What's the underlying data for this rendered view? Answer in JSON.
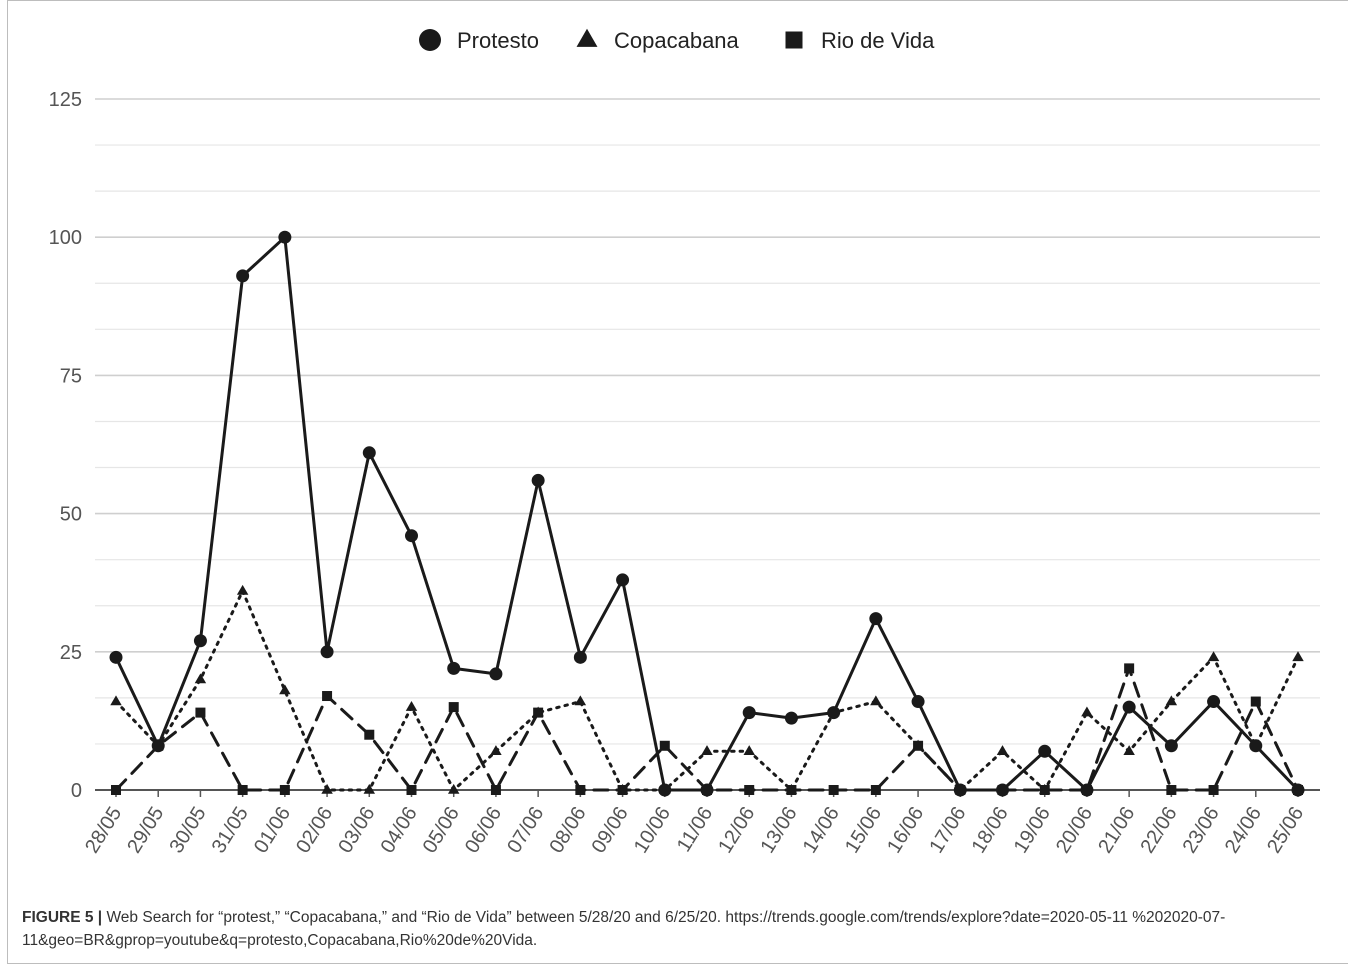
{
  "chart_data": {
    "type": "line",
    "categories": [
      "28/05",
      "29/05",
      "30/05",
      "31/05",
      "01/06",
      "02/06",
      "03/06",
      "04/06",
      "05/06",
      "06/06",
      "07/06",
      "08/06",
      "09/06",
      "10/06",
      "11/06",
      "12/06",
      "13/06",
      "14/06",
      "15/06",
      "16/06",
      "17/06",
      "18/06",
      "19/06",
      "20/06",
      "21/06",
      "22/06",
      "23/06",
      "24/06",
      "25/06"
    ],
    "series": [
      {
        "name": "Protesto",
        "marker": "circle",
        "line_style": "solid",
        "values": [
          24,
          8,
          27,
          93,
          100,
          25,
          61,
          46,
          22,
          21,
          56,
          24,
          38,
          0,
          0,
          14,
          13,
          14,
          31,
          16,
          0,
          0,
          7,
          0,
          15,
          8,
          16,
          8,
          0
        ]
      },
      {
        "name": "Copacabana",
        "marker": "triangle",
        "line_style": "dotted",
        "values": [
          16,
          8,
          20,
          36,
          18,
          0,
          0,
          15,
          0,
          7,
          14,
          16,
          0,
          0,
          7,
          7,
          0,
          14,
          16,
          8,
          0,
          7,
          0,
          14,
          7,
          16,
          24,
          8,
          24
        ]
      },
      {
        "name": "Rio de Vida",
        "marker": "square",
        "line_style": "dashed",
        "values": [
          0,
          8,
          14,
          0,
          0,
          17,
          10,
          0,
          15,
          0,
          14,
          0,
          0,
          8,
          0,
          0,
          0,
          0,
          0,
          8,
          0,
          0,
          0,
          0,
          22,
          0,
          0,
          16,
          0
        ]
      }
    ],
    "y_ticks": [
      "0",
      "25",
      "50",
      "75",
      "100",
      "125"
    ],
    "ylim": [
      0,
      125
    ],
    "grid": true,
    "legend_position": "top-center",
    "colors": {
      "line": "#1a1a1a",
      "grid": "#d9d9d9",
      "axis": "#555555"
    }
  },
  "caption": {
    "figure_label": "FIGURE 5 |",
    "text": "Web Search for “protest,” “Copacabana,” and “Rio de Vida” between 5/28/20 and 6/25/20. https://trends.google.com/trends/explore?date=2020-05-11 %202020-07-11&geo=BR&gprop=youtube&q=protesto,Copacabana,Rio%20de%20Vida."
  }
}
